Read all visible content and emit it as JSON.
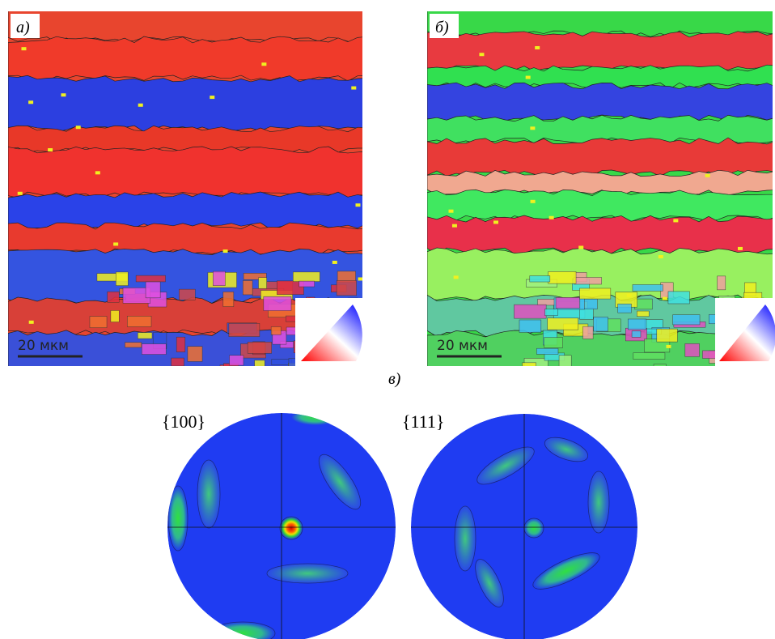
{
  "panels": [
    {
      "label": "а)",
      "scale_bar": "20 мкм"
    },
    {
      "label": "б)",
      "scale_bar": "20 мкм"
    }
  ],
  "bottom": {
    "label": "в)",
    "pole_figures": [
      "{100}",
      "{111}"
    ]
  }
}
